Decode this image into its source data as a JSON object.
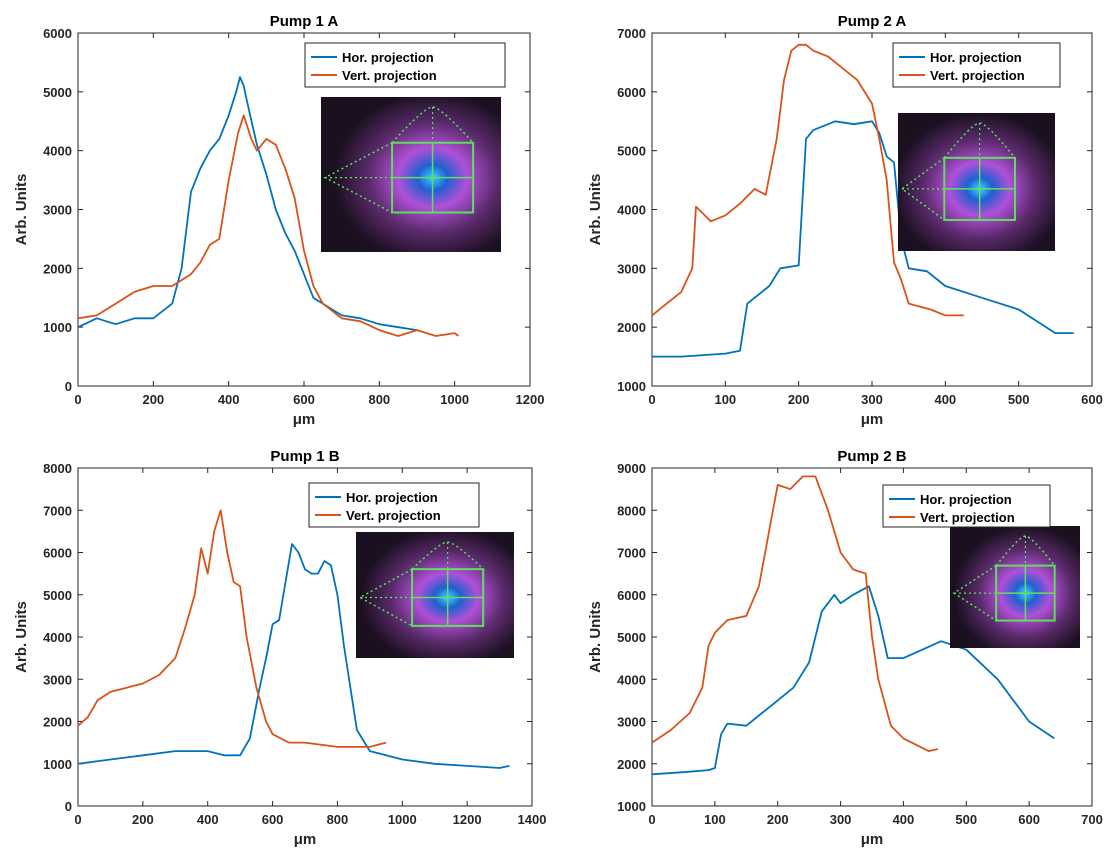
{
  "chart_data": [
    {
      "type": "line",
      "title": "Pump 1 A",
      "xlabel": "μm",
      "ylabel": "Arb. Units",
      "xlim": [
        0,
        1200
      ],
      "ylim": [
        0,
        6000
      ],
      "xticks": [
        0,
        200,
        400,
        600,
        800,
        1000,
        1200
      ],
      "yticks": [
        0,
        1000,
        2000,
        3000,
        4000,
        5000,
        6000
      ],
      "legend": "top-right",
      "inset": "beam-profile-image",
      "series": [
        {
          "name": "Hor. projection",
          "color": "#0072BD",
          "x": [
            0,
            50,
            100,
            150,
            200,
            250,
            275,
            300,
            325,
            350,
            375,
            400,
            420,
            430,
            440,
            450,
            475,
            500,
            525,
            550,
            575,
            600,
            625,
            650,
            700,
            750,
            800,
            850,
            900
          ],
          "y": [
            1000,
            1150,
            1050,
            1150,
            1150,
            1400,
            2000,
            3300,
            3700,
            4000,
            4200,
            4600,
            5000,
            5250,
            5100,
            4800,
            4100,
            3600,
            3000,
            2600,
            2300,
            1900,
            1500,
            1400,
            1200,
            1150,
            1050,
            1000,
            950
          ]
        },
        {
          "name": "Vert. projection",
          "color": "#D95319",
          "x": [
            0,
            50,
            100,
            150,
            200,
            250,
            300,
            325,
            350,
            375,
            400,
            425,
            440,
            460,
            475,
            500,
            525,
            550,
            575,
            600,
            625,
            650,
            700,
            750,
            800,
            850,
            900,
            950,
            1000,
            1010
          ],
          "y": [
            1150,
            1200,
            1400,
            1600,
            1700,
            1700,
            1900,
            2100,
            2400,
            2500,
            3500,
            4300,
            4600,
            4200,
            4000,
            4200,
            4100,
            3700,
            3200,
            2300,
            1700,
            1400,
            1150,
            1100,
            950,
            850,
            950,
            850,
            900,
            850
          ]
        }
      ]
    },
    {
      "type": "line",
      "title": "Pump 2 A",
      "xlabel": "μm",
      "ylabel": "Arb. Units",
      "xlim": [
        0,
        600
      ],
      "ylim": [
        1000,
        7000
      ],
      "xticks": [
        0,
        100,
        200,
        300,
        400,
        500,
        600
      ],
      "yticks": [
        1000,
        2000,
        3000,
        4000,
        5000,
        6000,
        7000
      ],
      "legend": "top-right",
      "inset": "beam-profile-image",
      "series": [
        {
          "name": "Hor. projection",
          "color": "#0072BD",
          "x": [
            0,
            40,
            100,
            120,
            130,
            160,
            175,
            200,
            210,
            220,
            250,
            275,
            300,
            310,
            320,
            330,
            340,
            350,
            375,
            400,
            450,
            500,
            550,
            575
          ],
          "y": [
            1500,
            1500,
            1550,
            1600,
            2400,
            2700,
            3000,
            3050,
            5200,
            5350,
            5500,
            5450,
            5500,
            5300,
            4900,
            4800,
            3500,
            3000,
            2950,
            2700,
            2500,
            2300,
            1900,
            1900
          ]
        },
        {
          "name": "Vert. projection",
          "color": "#D95319",
          "x": [
            0,
            20,
            40,
            55,
            60,
            80,
            100,
            120,
            140,
            155,
            170,
            180,
            190,
            200,
            210,
            220,
            240,
            260,
            280,
            300,
            310,
            320,
            330,
            340,
            350,
            380,
            400,
            425
          ],
          "y": [
            2200,
            2400,
            2600,
            3000,
            4050,
            3800,
            3900,
            4100,
            4350,
            4250,
            5200,
            6200,
            6700,
            6800,
            6800,
            6700,
            6600,
            6400,
            6200,
            5800,
            5200,
            4500,
            3100,
            2800,
            2400,
            2300,
            2200,
            2200
          ]
        }
      ]
    },
    {
      "type": "line",
      "title": "Pump 1 B",
      "xlabel": "μm",
      "ylabel": "Arb. Units",
      "xlim": [
        0,
        1400
      ],
      "ylim": [
        0,
        8000
      ],
      "xticks": [
        0,
        200,
        400,
        600,
        800,
        1000,
        1200,
        1400
      ],
      "yticks": [
        0,
        1000,
        2000,
        3000,
        4000,
        5000,
        6000,
        7000,
        8000
      ],
      "legend": "top-right",
      "inset": "beam-profile-image",
      "series": [
        {
          "name": "Hor. projection",
          "color": "#0072BD",
          "x": [
            0,
            100,
            200,
            300,
            400,
            450,
            500,
            530,
            560,
            580,
            600,
            620,
            640,
            660,
            680,
            700,
            720,
            740,
            760,
            780,
            800,
            820,
            840,
            860,
            900,
            1000,
            1100,
            1200,
            1300,
            1330
          ],
          "y": [
            1000,
            1100,
            1200,
            1300,
            1300,
            1200,
            1200,
            1600,
            2800,
            3500,
            4300,
            4400,
            5300,
            6200,
            6000,
            5600,
            5500,
            5500,
            5800,
            5700,
            5000,
            3800,
            2800,
            1800,
            1300,
            1100,
            1000,
            950,
            900,
            950
          ]
        },
        {
          "name": "Vert. projection",
          "color": "#D95319",
          "x": [
            0,
            30,
            60,
            100,
            150,
            200,
            250,
            300,
            330,
            360,
            380,
            400,
            420,
            440,
            460,
            480,
            500,
            520,
            550,
            580,
            600,
            650,
            700,
            800,
            900,
            950
          ],
          "y": [
            1900,
            2100,
            2500,
            2700,
            2800,
            2900,
            3100,
            3500,
            4200,
            5000,
            6100,
            5500,
            6500,
            7000,
            6000,
            5300,
            5200,
            4000,
            2800,
            2000,
            1700,
            1500,
            1500,
            1400,
            1400,
            1500
          ]
        }
      ]
    },
    {
      "type": "line",
      "title": "Pump 2 B",
      "xlabel": "μm",
      "ylabel": "Arb. Units",
      "xlim": [
        0,
        700
      ],
      "ylim": [
        1000,
        9000
      ],
      "xticks": [
        0,
        100,
        200,
        300,
        400,
        500,
        600,
        700
      ],
      "yticks": [
        1000,
        2000,
        3000,
        4000,
        5000,
        6000,
        7000,
        8000,
        9000
      ],
      "legend": "top-right",
      "inset": "beam-profile-image",
      "series": [
        {
          "name": "Hor. projection",
          "color": "#0072BD",
          "x": [
            0,
            50,
            90,
            100,
            110,
            120,
            150,
            175,
            200,
            225,
            250,
            270,
            290,
            300,
            320,
            345,
            360,
            375,
            400,
            430,
            460,
            500,
            550,
            600,
            640
          ],
          "y": [
            1750,
            1800,
            1850,
            1900,
            2700,
            2950,
            2900,
            3200,
            3500,
            3800,
            4400,
            5600,
            6000,
            5800,
            6000,
            6200,
            5500,
            4500,
            4500,
            4700,
            4900,
            4700,
            4000,
            3000,
            2600
          ]
        },
        {
          "name": "Vert. projection",
          "color": "#D95319",
          "x": [
            0,
            30,
            60,
            80,
            90,
            100,
            120,
            150,
            170,
            190,
            200,
            220,
            240,
            260,
            280,
            300,
            320,
            340,
            350,
            360,
            380,
            400,
            440,
            455
          ],
          "y": [
            2500,
            2800,
            3200,
            3800,
            4800,
            5100,
            5400,
            5500,
            6200,
            7800,
            8600,
            8500,
            8800,
            8800,
            8000,
            7000,
            6600,
            6500,
            5000,
            4000,
            2900,
            2600,
            2300,
            2350
          ]
        }
      ]
    }
  ]
}
